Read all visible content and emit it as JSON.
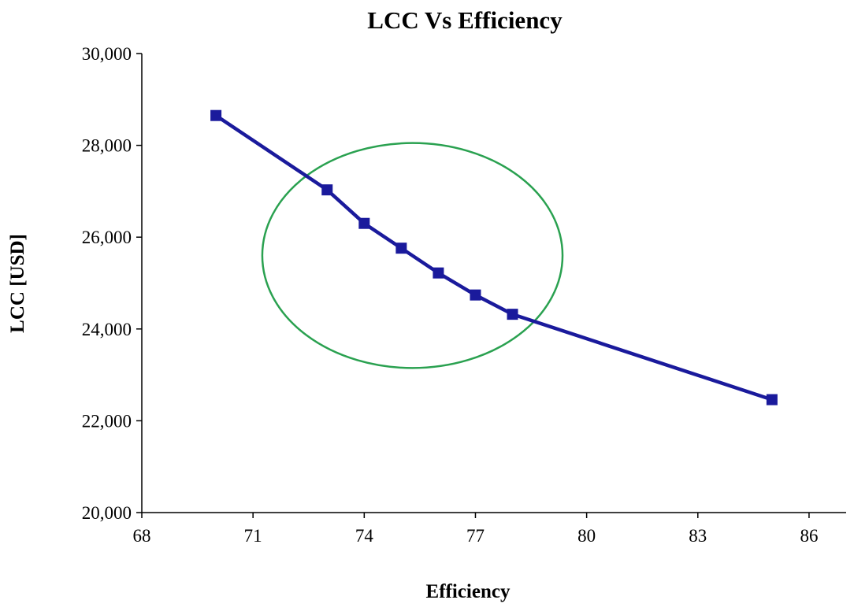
{
  "chart_data": {
    "type": "line",
    "title": "LCC Vs Efficiency",
    "xlabel": "Efficiency",
    "ylabel": "LCC [USD]",
    "xlim": [
      68,
      87
    ],
    "ylim": [
      20000,
      30000
    ],
    "xticks": [
      68,
      71,
      74,
      77,
      80,
      83,
      86
    ],
    "xtick_labels": [
      "68",
      "71",
      "74",
      "77",
      "80",
      "83",
      "86"
    ],
    "yticks": [
      20000,
      22000,
      24000,
      26000,
      28000,
      30000
    ],
    "ytick_labels": [
      "20,000",
      "22,000",
      "24,000",
      "26,000",
      "28,000",
      "30,000"
    ],
    "grid": false,
    "series": [
      {
        "name": "LCC",
        "color": "#1a1a9c",
        "marker": "square",
        "x": [
          70,
          73,
          74,
          75,
          76,
          77,
          78,
          85
        ],
        "y": [
          28650,
          27030,
          26300,
          25760,
          25220,
          24740,
          24320,
          22460
        ]
      }
    ],
    "annotations": [
      {
        "type": "ellipse",
        "color": "#2aa150",
        "center_x": 75.3,
        "center_y": 25600,
        "radius_x": 4.05,
        "radius_y": 2450
      }
    ]
  }
}
